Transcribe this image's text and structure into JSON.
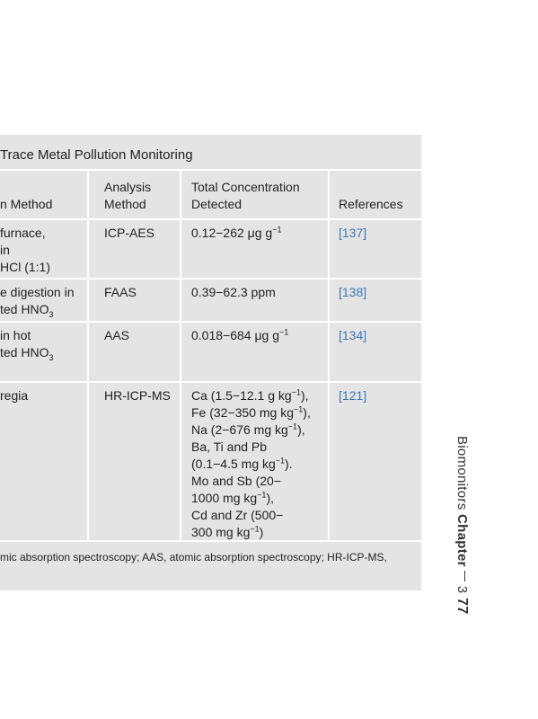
{
  "table": {
    "title": "Trace Metal Pollution Monitoring",
    "header": [
      [
        "n Method"
      ],
      [
        "Analysis",
        "Method"
      ],
      [
        "Total Concentration",
        "Detected"
      ],
      [
        "References"
      ]
    ],
    "rows": [
      [
        [
          "furnace,",
          "in",
          "HCl (1:1)"
        ],
        [
          "ICP-AES"
        ],
        [
          [
            "0.12−262 μg g",
            {
              "sup": "−1"
            }
          ]
        ],
        [
          "[137]"
        ]
      ],
      [
        [
          "e digestion in",
          [
            "ted HNO",
            {
              "sub": "3"
            }
          ]
        ],
        [
          "FAAS"
        ],
        [
          "0.39−62.3 ppm"
        ],
        [
          "[138]"
        ]
      ],
      [
        [
          "in hot",
          [
            "ted HNO",
            {
              "sub": "3"
            }
          ]
        ],
        [
          "AAS"
        ],
        [
          [
            "0.018−684 μg g",
            {
              "sup": "−1"
            }
          ]
        ],
        [
          "[134]"
        ]
      ],
      [
        [
          "regia"
        ],
        [
          "HR-ICP-MS"
        ],
        [
          [
            "Ca (1.5−12.1 g kg",
            {
              "sup": "−1"
            },
            "),"
          ],
          [
            "Fe (32−350 mg kg",
            {
              "sup": "−1"
            },
            "),"
          ],
          [
            "Na (2−676 mg kg",
            {
              "sup": "−1"
            },
            "),"
          ],
          "Ba, Ti and Pb",
          [
            "(0.1−4.5 mg kg",
            {
              "sup": "−1"
            },
            ")."
          ],
          "Mo and Sb (20−",
          [
            "1000 mg kg",
            {
              "sup": "−1"
            },
            "),"
          ],
          "Cd and Zr (500−",
          [
            "300 mg kg",
            {
              "sup": "−1"
            },
            ")"
          ]
        ],
        [
          "[121]"
        ]
      ]
    ],
    "footnote": "mic absorption spectroscopy; AAS, atomic absorption spectroscopy; HR-ICP-MS,"
  },
  "running_head": {
    "book": "Biomonitors",
    "chapter_label": "Chapter",
    "chapter": "3",
    "page": "77"
  }
}
